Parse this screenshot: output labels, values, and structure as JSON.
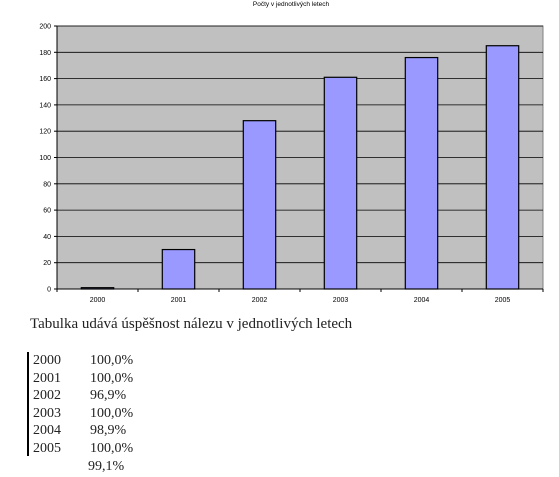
{
  "chart_data": {
    "type": "bar",
    "title": "Počty v jednotlivých letech",
    "categories": [
      "2000",
      "2001",
      "2002",
      "2003",
      "2004",
      "2005"
    ],
    "values": [
      1,
      30,
      128,
      161,
      176,
      185
    ],
    "ylim": [
      0,
      200
    ],
    "yticks": [
      0,
      20,
      40,
      60,
      80,
      100,
      120,
      140,
      160,
      180,
      200
    ],
    "xlabel": "",
    "ylabel": "",
    "grid": true,
    "bar_color": "#9999ff",
    "plot_bg": "#c0c0c0"
  },
  "caption": "Tabulka udává úspěšnost nálezu v jednotlivých letech",
  "table": [
    {
      "year": "2000",
      "rate": "100,0%"
    },
    {
      "year": "2001",
      "rate": "100,0%"
    },
    {
      "year": "2002",
      "rate": "96,9%"
    },
    {
      "year": "2003",
      "rate": "100,0%"
    },
    {
      "year": "2004",
      "rate": "98,9%"
    },
    {
      "year": "2005",
      "rate": "100,0%"
    }
  ],
  "total": "99,1%"
}
